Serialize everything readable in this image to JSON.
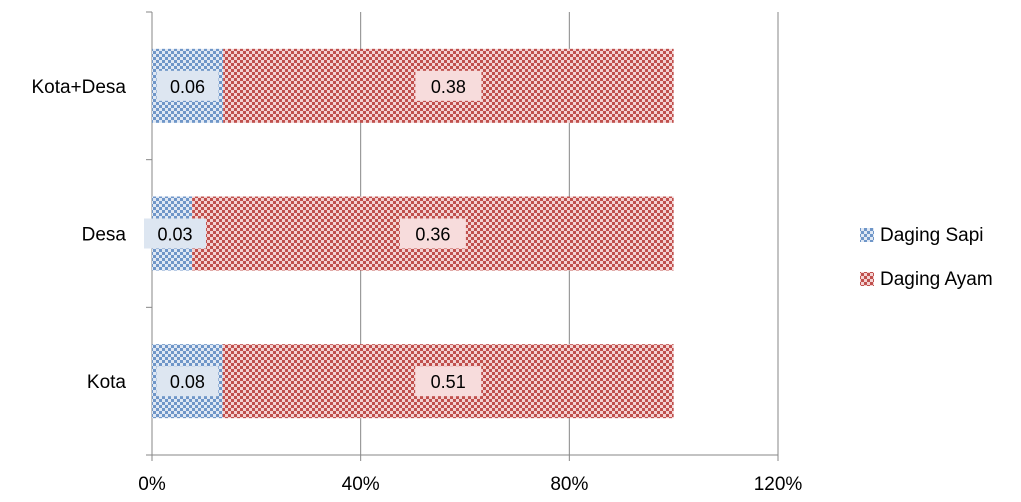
{
  "chart_data": {
    "type": "bar",
    "orientation": "horizontal",
    "stacking": "100%-stacked",
    "categories": [
      "Kota+Desa",
      "Desa",
      "Kota"
    ],
    "series": [
      {
        "name": "Daging Sapi",
        "values": [
          0.06,
          0.03,
          0.08
        ],
        "color": "#4f81bd",
        "pattern": "checker"
      },
      {
        "name": "Daging Ayam",
        "values": [
          0.38,
          0.36,
          0.51
        ],
        "color": "#c0504d",
        "pattern": "checker"
      }
    ],
    "x_ticks": [
      "0%",
      "40%",
      "80%",
      "120%"
    ],
    "xlim": [
      0,
      120
    ],
    "grid": "vertical",
    "legend_position": "right",
    "title": "",
    "xlabel": "",
    "ylabel": ""
  }
}
